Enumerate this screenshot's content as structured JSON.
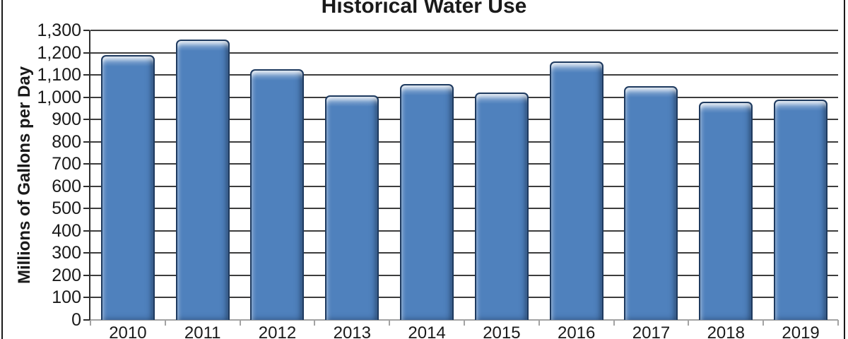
{
  "figure": {
    "background": "#FFFFFF",
    "border_color": "#1A1A1A"
  },
  "chart_data": {
    "type": "bar",
    "title": "Historical Water Use",
    "ylabel": "Millions of Gallons per Day",
    "xlabel": "",
    "categories": [
      "2010",
      "2011",
      "2012",
      "2013",
      "2014",
      "2015",
      "2016",
      "2017",
      "2018",
      "2019"
    ],
    "values": [
      1190,
      1260,
      1125,
      1010,
      1060,
      1020,
      1160,
      1050,
      980,
      990
    ],
    "ylim": [
      0,
      1300
    ],
    "ytick_step": 100,
    "ytick_labels": [
      "0",
      "100",
      "200",
      "300",
      "400",
      "500",
      "600",
      "700",
      "800",
      "900",
      "1,000",
      "1,100",
      "1,200",
      "1,300"
    ],
    "grid": true,
    "legend": false,
    "bar_color": "#4F81BD",
    "bar_border_color": "#1E3A5F",
    "gridline_color": "#3D3D3D",
    "axis_color": "#2E2E2E",
    "baseline_color": "#A3A3A3",
    "text_color": "#1A1A1A"
  }
}
